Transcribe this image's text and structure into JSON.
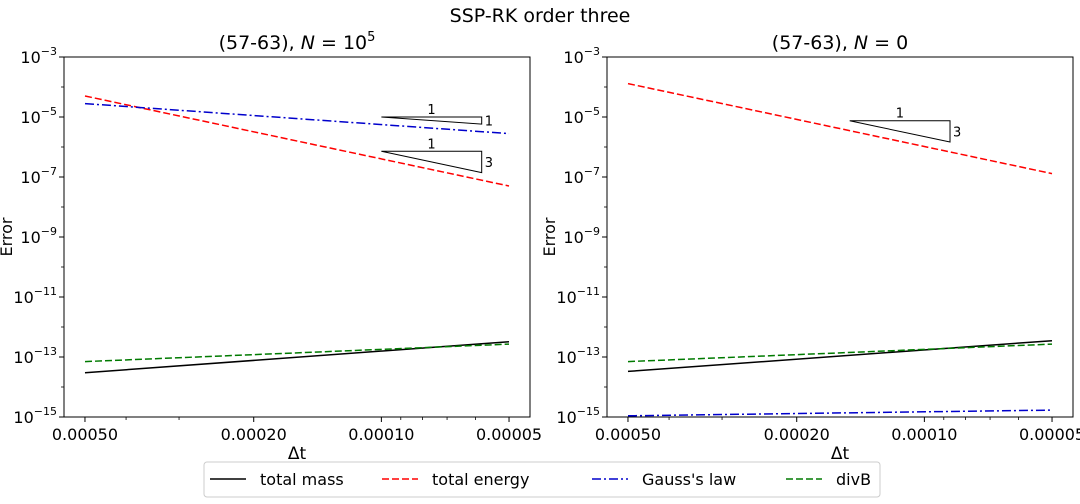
{
  "figure_title": "SSP-RK order three",
  "legend": [
    {
      "label": "total mass",
      "color": "#000000",
      "dash": "solid"
    },
    {
      "label": "total energy",
      "color": "#ff0000",
      "dash": "dashed"
    },
    {
      "label": "Gauss's law",
      "color": "#0000cc",
      "dash": "dashdot"
    },
    {
      "label": "divB",
      "color": "#007a00",
      "dash": "dashed"
    }
  ],
  "chart_data": [
    {
      "type": "line",
      "title": "(57-63), N = 10^5",
      "title_prefix": "(57-63), ",
      "title_var": "N",
      "title_eq": " = ",
      "title_base": "10",
      "title_exp": "5",
      "xlabel": "Δt",
      "ylabel": "Error",
      "xscale": "log",
      "yscale": "log",
      "xlim_reversed": [
        0.0005,
        5e-05
      ],
      "ylim": [
        1e-15,
        0.001
      ],
      "xticks": [
        {
          "value": 0.0005,
          "label": "0.00050"
        },
        {
          "value": 0.0002,
          "label": "0.00020"
        },
        {
          "value": 0.0001,
          "label": "0.00010"
        },
        {
          "value": 5e-05,
          "label": "0.00005"
        }
      ],
      "yticks": [
        {
          "value": 1e-15,
          "base": "10",
          "exp": "−15"
        },
        {
          "value": 1e-13,
          "base": "10",
          "exp": "−13"
        },
        {
          "value": 1e-11,
          "base": "10",
          "exp": "−11"
        },
        {
          "value": 1e-09,
          "base": "10",
          "exp": "−9"
        },
        {
          "value": 1e-07,
          "base": "10",
          "exp": "−7"
        },
        {
          "value": 1e-05,
          "base": "10",
          "exp": "−5"
        },
        {
          "value": 0.001,
          "base": "10",
          "exp": "−3"
        }
      ],
      "x": [
        0.0005,
        5e-05
      ],
      "series": [
        {
          "name": "total mass",
          "values": [
            3e-14,
            3.2e-13
          ]
        },
        {
          "name": "total energy",
          "values": [
            5e-05,
            5e-08
          ]
        },
        {
          "name": "Gauss's law",
          "values": [
            2.8e-05,
            2.8e-06
          ]
        },
        {
          "name": "divB",
          "values": [
            7e-14,
            2.7e-13
          ]
        }
      ],
      "slope_triangles": [
        {
          "run_label": "1",
          "rise_label": "1",
          "x_start": 0.0001,
          "x_end": 5.8e-05,
          "y_start": 1e-05
        },
        {
          "run_label": "1",
          "rise_label": "3",
          "x_start": 0.0001,
          "x_end": 5.8e-05,
          "y_start": 7.2e-07
        }
      ]
    },
    {
      "type": "line",
      "title": "(57-63), N = 0",
      "title_prefix": "(57-63), ",
      "title_var": "N",
      "title_eq": " = 0",
      "xlabel": "Δt",
      "ylabel": "Error",
      "xscale": "log",
      "yscale": "log",
      "xlim_reversed": [
        0.0005,
        5e-05
      ],
      "ylim": [
        1e-15,
        0.001
      ],
      "xticks": [
        {
          "value": 0.0005,
          "label": "0.00050"
        },
        {
          "value": 0.0002,
          "label": "0.00020"
        },
        {
          "value": 0.0001,
          "label": "0.00010"
        },
        {
          "value": 5e-05,
          "label": "0.00005"
        }
      ],
      "yticks": [
        {
          "value": 1e-15,
          "base": "10",
          "exp": "−15"
        },
        {
          "value": 1e-13,
          "base": "10",
          "exp": "−13"
        },
        {
          "value": 1e-11,
          "base": "10",
          "exp": "−11"
        },
        {
          "value": 1e-09,
          "base": "10",
          "exp": "−9"
        },
        {
          "value": 1e-07,
          "base": "10",
          "exp": "−7"
        },
        {
          "value": 1e-05,
          "base": "10",
          "exp": "−5"
        },
        {
          "value": 0.001,
          "base": "10",
          "exp": "−3"
        }
      ],
      "x": [
        0.0005,
        5e-05
      ],
      "series": [
        {
          "name": "total mass",
          "values": [
            3.3e-14,
            3.5e-13
          ]
        },
        {
          "name": "total energy",
          "values": [
            0.00013,
            1.3e-07
          ]
        },
        {
          "name": "Gauss's law",
          "values": [
            1.1e-15,
            1.7e-15
          ]
        },
        {
          "name": "divB",
          "values": [
            7e-14,
            2.7e-13
          ]
        }
      ],
      "slope_triangles": [
        {
          "run_label": "1",
          "rise_label": "3",
          "x_start": 0.00015,
          "x_end": 8.7e-05,
          "y_start": 7.5e-06
        }
      ]
    }
  ]
}
